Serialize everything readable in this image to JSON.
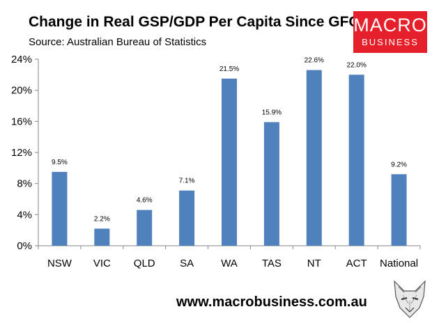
{
  "header": {
    "title": "Change in Real GSP/GDP Per Capita Since GFC",
    "subtitle": "Source: Australian Bureau of Statistics"
  },
  "logo": {
    "line1": "MACRO",
    "line2": "BUSINESS",
    "bg_color": "#e5202a"
  },
  "footer": {
    "url": "www.macrobusiness.com.au"
  },
  "chart_data": {
    "type": "bar",
    "title": "Change in Real GSP/GDP Per Capita Since GFC",
    "xlabel": "",
    "ylabel": "",
    "categories": [
      "NSW",
      "VIC",
      "QLD",
      "SA",
      "WA",
      "TAS",
      "NT",
      "ACT",
      "National"
    ],
    "values": [
      9.5,
      2.2,
      4.6,
      7.1,
      21.5,
      15.9,
      22.6,
      22.0,
      9.2
    ],
    "data_labels": [
      "9.5%",
      "2.2%",
      "4.6%",
      "7.1%",
      "21.5%",
      "15.9%",
      "22.6%",
      "22.0%",
      "9.2%"
    ],
    "ylim": [
      0,
      24
    ],
    "yticks": [
      0,
      4,
      8,
      12,
      16,
      20,
      24
    ],
    "ytick_labels": [
      "0%",
      "4%",
      "8%",
      "12%",
      "16%",
      "20%",
      "24%"
    ],
    "bar_color": "#4f81bd",
    "grid": false
  }
}
